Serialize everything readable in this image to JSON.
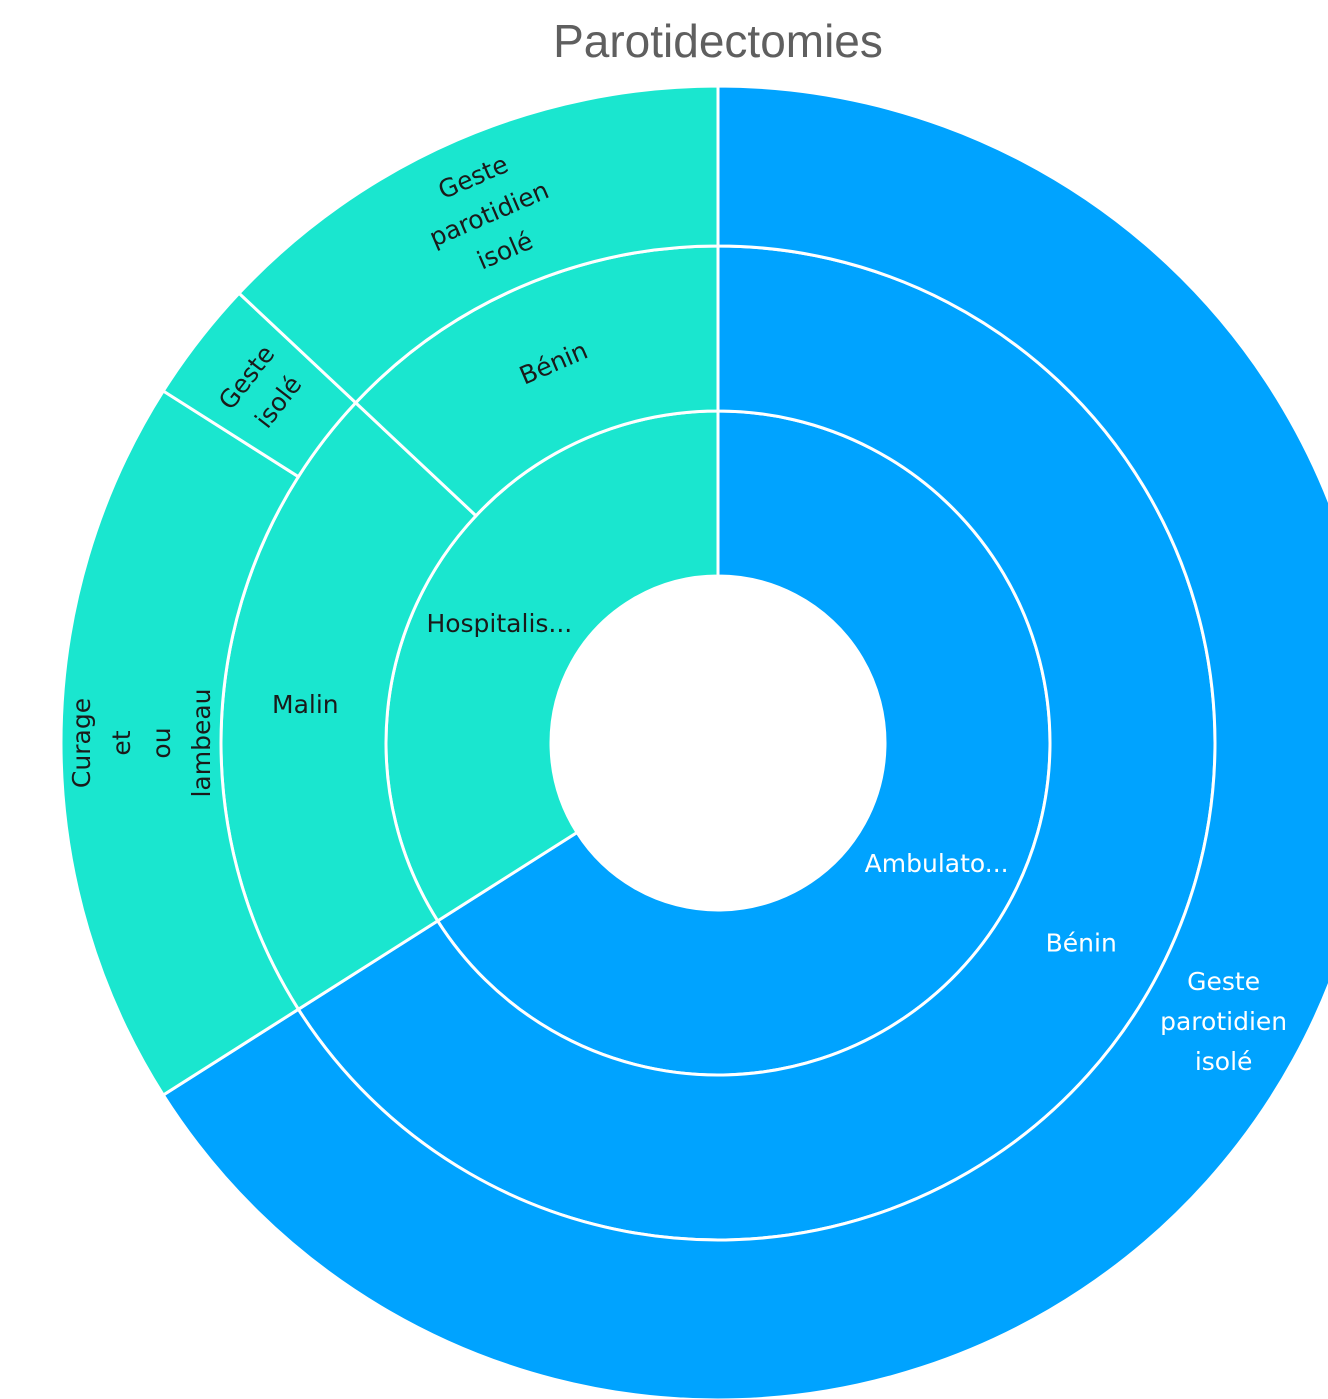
{
  "chart_data": {
    "type": "sunburst",
    "title": "Parotidectomies",
    "colors": {
      "Ambulatoire": "#00a3ff",
      "Hospitalisation": "#1ae6cf"
    },
    "nodes": [
      {
        "id": "amb",
        "label": "Ambulato...",
        "parent": "",
        "value": 66,
        "color": "#00a3ff"
      },
      {
        "id": "hosp",
        "label": "Hospitalis...",
        "parent": "",
        "value": 34,
        "color": "#1ae6cf"
      },
      {
        "id": "amb-benin",
        "label": "Bénin",
        "parent": "amb",
        "value": 66,
        "color": "#00a3ff"
      },
      {
        "id": "hosp-malin",
        "label": "Malin",
        "parent": "hosp",
        "value": 21,
        "color": "#1ae6cf"
      },
      {
        "id": "hosp-benin",
        "label": "Bénin",
        "parent": "hosp",
        "value": 13,
        "color": "#1ae6cf"
      },
      {
        "id": "amb-benin-geste",
        "label": "Geste parotidien isolé",
        "parent": "amb-benin",
        "value": 66,
        "color": "#00a3ff"
      },
      {
        "id": "hosp-malin-curage",
        "label": "Curage et ou lambeau",
        "parent": "hosp-malin",
        "value": 18,
        "color": "#1ae6cf"
      },
      {
        "id": "hosp-malin-geste",
        "label": "Geste isolé",
        "parent": "hosp-malin",
        "value": 3,
        "color": "#1ae6cf"
      },
      {
        "id": "hosp-benin-geste",
        "label": "Geste parotidien isolé",
        "parent": "hosp-benin",
        "value": 13,
        "color": "#1ae6cf"
      }
    ]
  }
}
